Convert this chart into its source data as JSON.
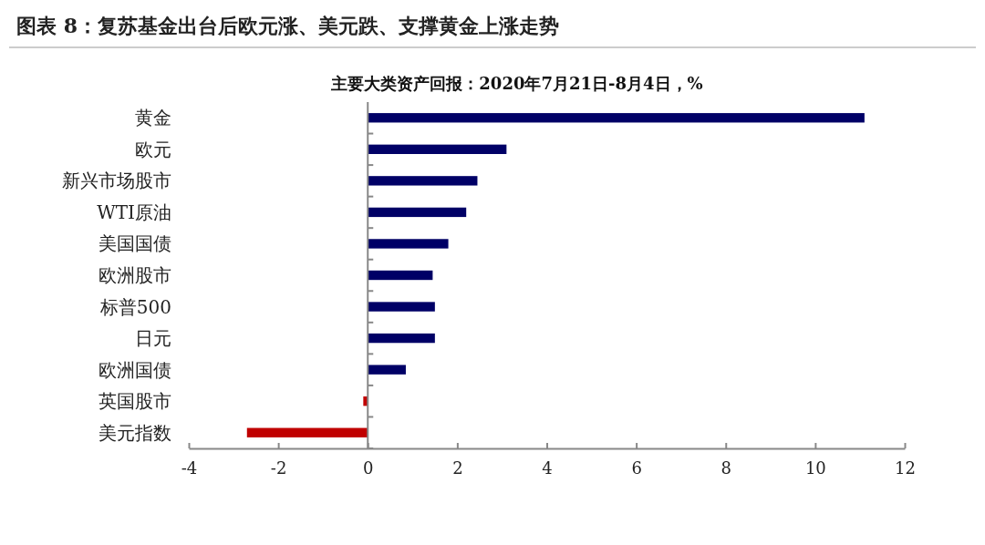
{
  "chart_data": {
    "type": "bar",
    "orientation": "horizontal",
    "title": "图表 8：复苏基金出台后欧元涨、美元跌、支撑黄金上涨走势",
    "subtitle": "主要大类资产回报：2020年7月21日-8月4日，%",
    "categories": [
      "黄金",
      "欧元",
      "新兴市场股市",
      "WTI原油",
      "美国国债",
      "欧洲股市",
      "标普500",
      "日元",
      "欧洲国债",
      "英国股市",
      "美元指数"
    ],
    "values": [
      11.1,
      3.1,
      2.45,
      2.2,
      1.8,
      1.45,
      1.5,
      1.5,
      0.85,
      -0.1,
      -2.7
    ],
    "colors": [
      "#000066",
      "#000066",
      "#000066",
      "#000066",
      "#000066",
      "#000066",
      "#000066",
      "#000066",
      "#000066",
      "#c00000",
      "#c00000"
    ],
    "xlim": [
      -4,
      12
    ],
    "xticks": [
      -4,
      -2,
      0,
      2,
      4,
      6,
      8,
      10,
      12
    ]
  }
}
